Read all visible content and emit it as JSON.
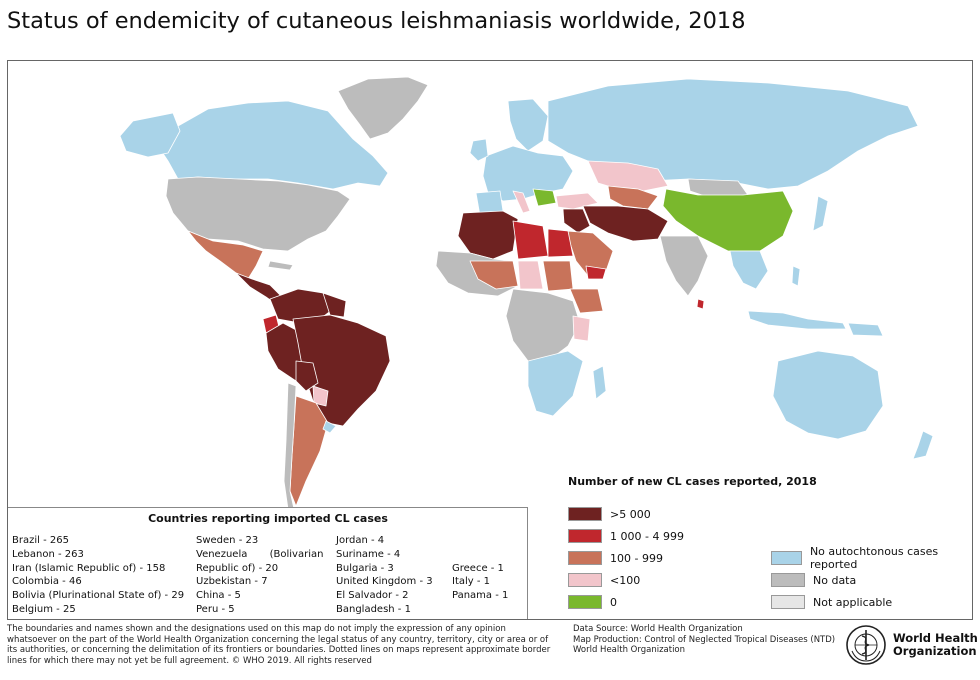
{
  "title": "Status of endemicity of cutaneous leishmaniasis worldwide, 2018",
  "colors": {
    "gt5000": "#6e2221",
    "c1000_4999": "#c0272d",
    "c100_999": "#c8735a",
    "lt100": "#f2c5cb",
    "zero": "#7ab82d",
    "no_autochthonous": "#a9d3e8",
    "no_data": "#bcbcbc",
    "not_applicable": "#e6e6e6"
  },
  "legend": {
    "title": "Number of new CL cases reported, 2018",
    "items": [
      {
        "label": ">5 000",
        "color": "#6e2221"
      },
      {
        "label": "1 000 - 4 999",
        "color": "#c0272d"
      },
      {
        "label": "100 - 999",
        "color": "#c8735a"
      },
      {
        "label": "<100",
        "color": "#f2c5cb"
      },
      {
        "label": "0",
        "color": "#7ab82d"
      },
      {
        "label": "No autochtonous cases reported",
        "color": "#a9d3e8"
      },
      {
        "label": "No data",
        "color": "#bcbcbc"
      },
      {
        "label": "Not applicable",
        "color": "#e6e6e6"
      }
    ]
  },
  "imported": {
    "title": "Countries reporting imported CL cases",
    "col1": [
      "Brazil - 265",
      "Lebanon - 263",
      "Iran (Islamic Republic of) - 158",
      "Colombia - 46",
      "Bolivia (Plurinational State of) - 29",
      "Belgium - 25"
    ],
    "col2": [
      "Sweden - 23",
      "Venezuela       (Bolivarian",
      "Republic of) - 20",
      "Uzbekistan - 7",
      "China - 5",
      "Peru - 5"
    ],
    "col3": [
      "Jordan - 4",
      "Suriname - 4",
      "Bulgaria - 3",
      "United Kingdom - 3",
      "El Salvador - 2",
      "Bangladesh - 1"
    ],
    "col4": [
      "Greece - 1",
      "Italy - 1",
      "Panama - 1"
    ]
  },
  "footer": {
    "disclaimer": "The boundaries and names shown and the designations used on this map do not imply the expression of any opinion whatsoever on the part of the World Health Organization concerning the legal status of any country, territory, city or area or of its authorities, or concerning the delimitation of its frontiers or boundaries. Dotted lines on maps represent approximate border lines for which there may not yet be full agreement. © WHO 2019. All rights reserved",
    "source_lines": [
      "Data Source: World Health Organization",
      "Map Production: Control of Neglected Tropical Diseases (NTD)",
      "World Health Organization"
    ],
    "who_line1": "World Health",
    "who_line2": "Organization"
  }
}
